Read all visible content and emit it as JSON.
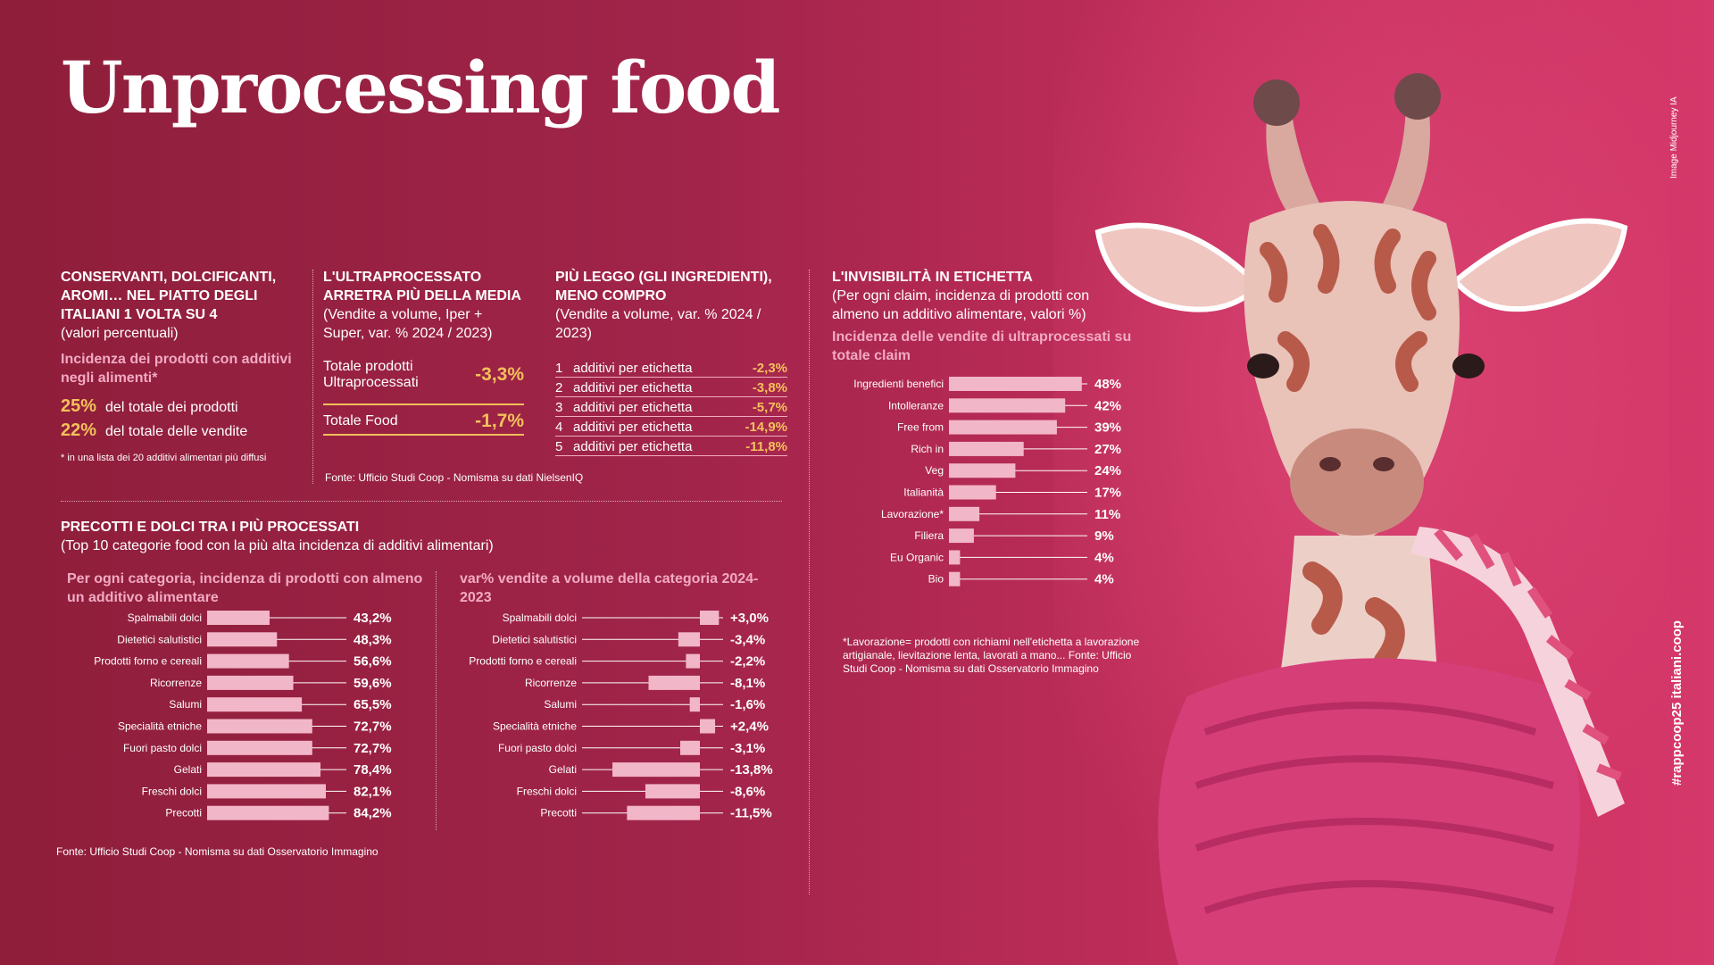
{
  "title": "Unprocessing food",
  "credit_top": "Image Midjourney IA",
  "credit_bottom": "#rappcoop25 italiani.coop",
  "colors": {
    "accent_yellow": "#f3c05a",
    "bar_pink": "#f2b6c9",
    "bg": "#a1244a"
  },
  "section1": {
    "heading": "CONSERVANTI, DOLCIFICANTI, AROMI… NEL PIATTO DEGLI ITALIANI 1 VOLTA SU 4",
    "subtitle": "(valori percentuali)",
    "pink_heading": "Incidenza dei prodotti con additivi negli alimenti*",
    "stat1_value": "25%",
    "stat1_label": "del totale dei prodotti",
    "stat2_value": "22%",
    "stat2_label": "del totale delle vendite",
    "footnote": "* in una lista dei 20 additivi alimentari più diffusi"
  },
  "section2": {
    "heading": "L'ULTRAPROCESSATO ARRETRA PIÙ DELLA MEDIA",
    "subtitle": "(Vendite a volume, Iper + Super, var. % 2024 / 2023)",
    "row1_label": "Totale prodotti Ultraprocessati",
    "row1_value": "-3,3%",
    "row2_label": "Totale Food",
    "row2_value": "-1,7%",
    "source": "Fonte: Ufficio Studi Coop - Nomisma su dati NielsenIQ"
  },
  "section3": {
    "heading": "PIÙ LEGGO (GLI INGREDIENTI), MENO COMPRO",
    "subtitle": "(Vendite a volume, var. % 2024 / 2023)",
    "rows": [
      {
        "n": "1",
        "label": "additivi per etichetta",
        "value": "-2,3%"
      },
      {
        "n": "2",
        "label": "additivi per etichetta",
        "value": "-3,8%"
      },
      {
        "n": "3",
        "label": "additivi per etichetta",
        "value": "-5,7%"
      },
      {
        "n": "4",
        "label": "additivi per etichetta",
        "value": "-14,9%"
      },
      {
        "n": "5",
        "label": "additivi per etichetta",
        "value": "-11,8%"
      }
    ]
  },
  "section4": {
    "heading": "PRECOTTI E DOLCI TRA I PIÙ PROCESSATI",
    "subtitle": "(Top 10 categorie food con la più alta incidenza di additivi alimentari)",
    "chart1_heading": "Per ogni categoria, incidenza di prodotti con almeno un additivo alimentare",
    "chart2_heading": "var% vendite a volume della categoria 2024-2023",
    "source": "Fonte: Ufficio Studi Coop - Nomisma su dati Osservatorio Immagino"
  },
  "section5": {
    "heading": "L'INVISIBILITÀ IN ETICHETTA",
    "subtitle": "(Per ogni claim, incidenza di prodotti con almeno un additivo alimentare, valori %)",
    "pink_heading": "Incidenza delle vendite di ultraprocessati su totale claim",
    "note": "*Lavorazione= prodotti con richiami nell'etichetta a lavorazione artigianale, lievitazione lenta, lavorati a mano... Fonte: Ufficio Studi Coop - Nomisma su dati Osservatorio Immagino"
  },
  "chart_data": [
    {
      "type": "bar",
      "categories": [
        "Spalmabili dolci",
        "Dietetici salutistici",
        "Prodotti forno e cereali",
        "Ricorrenze",
        "Salumi",
        "Specialità etniche",
        "Fuori pasto dolci",
        "Gelati",
        "Freschi dolci",
        "Precotti"
      ],
      "values": [
        43.2,
        48.3,
        56.6,
        59.6,
        65.5,
        72.7,
        72.7,
        78.4,
        82.1,
        84.2
      ],
      "labels": [
        "43,2%",
        "48,3%",
        "56,6%",
        "59,6%",
        "65,5%",
        "72,7%",
        "72,7%",
        "78,4%",
        "82,1%",
        "84,2%"
      ]
    },
    {
      "type": "bar",
      "categories": [
        "Spalmabili dolci",
        "Dietetici salutistici",
        "Prodotti forno e cereali",
        "Ricorrenze",
        "Salumi",
        "Specialità etniche",
        "Fuori pasto dolci",
        "Gelati",
        "Freschi dolci",
        "Precotti"
      ],
      "values": [
        3.0,
        -3.4,
        -2.2,
        -8.1,
        -1.6,
        2.4,
        -3.1,
        -13.8,
        -8.6,
        -11.5
      ],
      "labels": [
        "+3,0%",
        "-3,4%",
        "-2,2%",
        "-8,1%",
        "-1,6%",
        "+2,4%",
        "-3,1%",
        "-13,8%",
        "-8,6%",
        "-11,5%"
      ]
    },
    {
      "type": "bar",
      "categories": [
        "Ingredienti benefici",
        "Intolleranze",
        "Free from",
        "Rich in",
        "Veg",
        "Italianità",
        "Lavorazione*",
        "Filiera",
        "Eu Organic",
        "Bio"
      ],
      "values": [
        48,
        42,
        39,
        27,
        24,
        17,
        11,
        9,
        4,
        4
      ],
      "labels": [
        "48%",
        "42%",
        "39%",
        "27%",
        "24%",
        "17%",
        "11%",
        "9%",
        "4%",
        "4%"
      ]
    }
  ]
}
